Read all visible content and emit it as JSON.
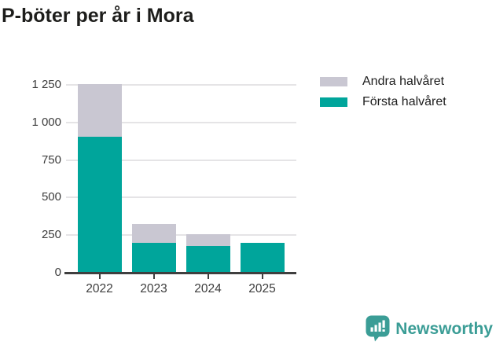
{
  "title": "P-böter per år i Mora",
  "chart_data": {
    "type": "bar",
    "stacked": true,
    "title": "P-böter per år i Mora",
    "categories": [
      "2022",
      "2023",
      "2024",
      "2025"
    ],
    "series": [
      {
        "name": "Första halvåret",
        "color": "#00a59b",
        "values": [
          905,
          197,
          176,
          197
        ]
      },
      {
        "name": "Andra halvåret",
        "color": "#c9c7d2",
        "values": [
          350,
          129,
          81,
          0
        ]
      }
    ],
    "xlabel": "",
    "ylabel": "",
    "ylim": [
      0,
      1250
    ],
    "yticks": [
      0,
      250,
      500,
      750,
      1000,
      1250
    ],
    "ytick_labels": [
      "0",
      "250",
      "500",
      "750",
      "1 000",
      "1 250"
    ],
    "grid": true,
    "legend_position": "top-right",
    "legend_order": [
      "Andra halvåret",
      "Första halvåret"
    ]
  },
  "legend": {
    "items": [
      {
        "label": "Andra halvåret",
        "color": "#c9c7d2"
      },
      {
        "label": "Första halvåret",
        "color": "#00a59b"
      }
    ]
  },
  "branding": {
    "logo_text": "Newsworthy",
    "logo_color": "#3b9d96",
    "logo_icon": "newsworthy-bar-chart-bubble-icon"
  },
  "colors": {
    "first_half": "#00a59b",
    "second_half": "#c9c7d2",
    "axis_line": "#3f3f3f",
    "gridline": "#e5e4e6",
    "tick_text": "#3c3c3c",
    "title_text": "#1d1d1b",
    "background": "#ffffff"
  }
}
